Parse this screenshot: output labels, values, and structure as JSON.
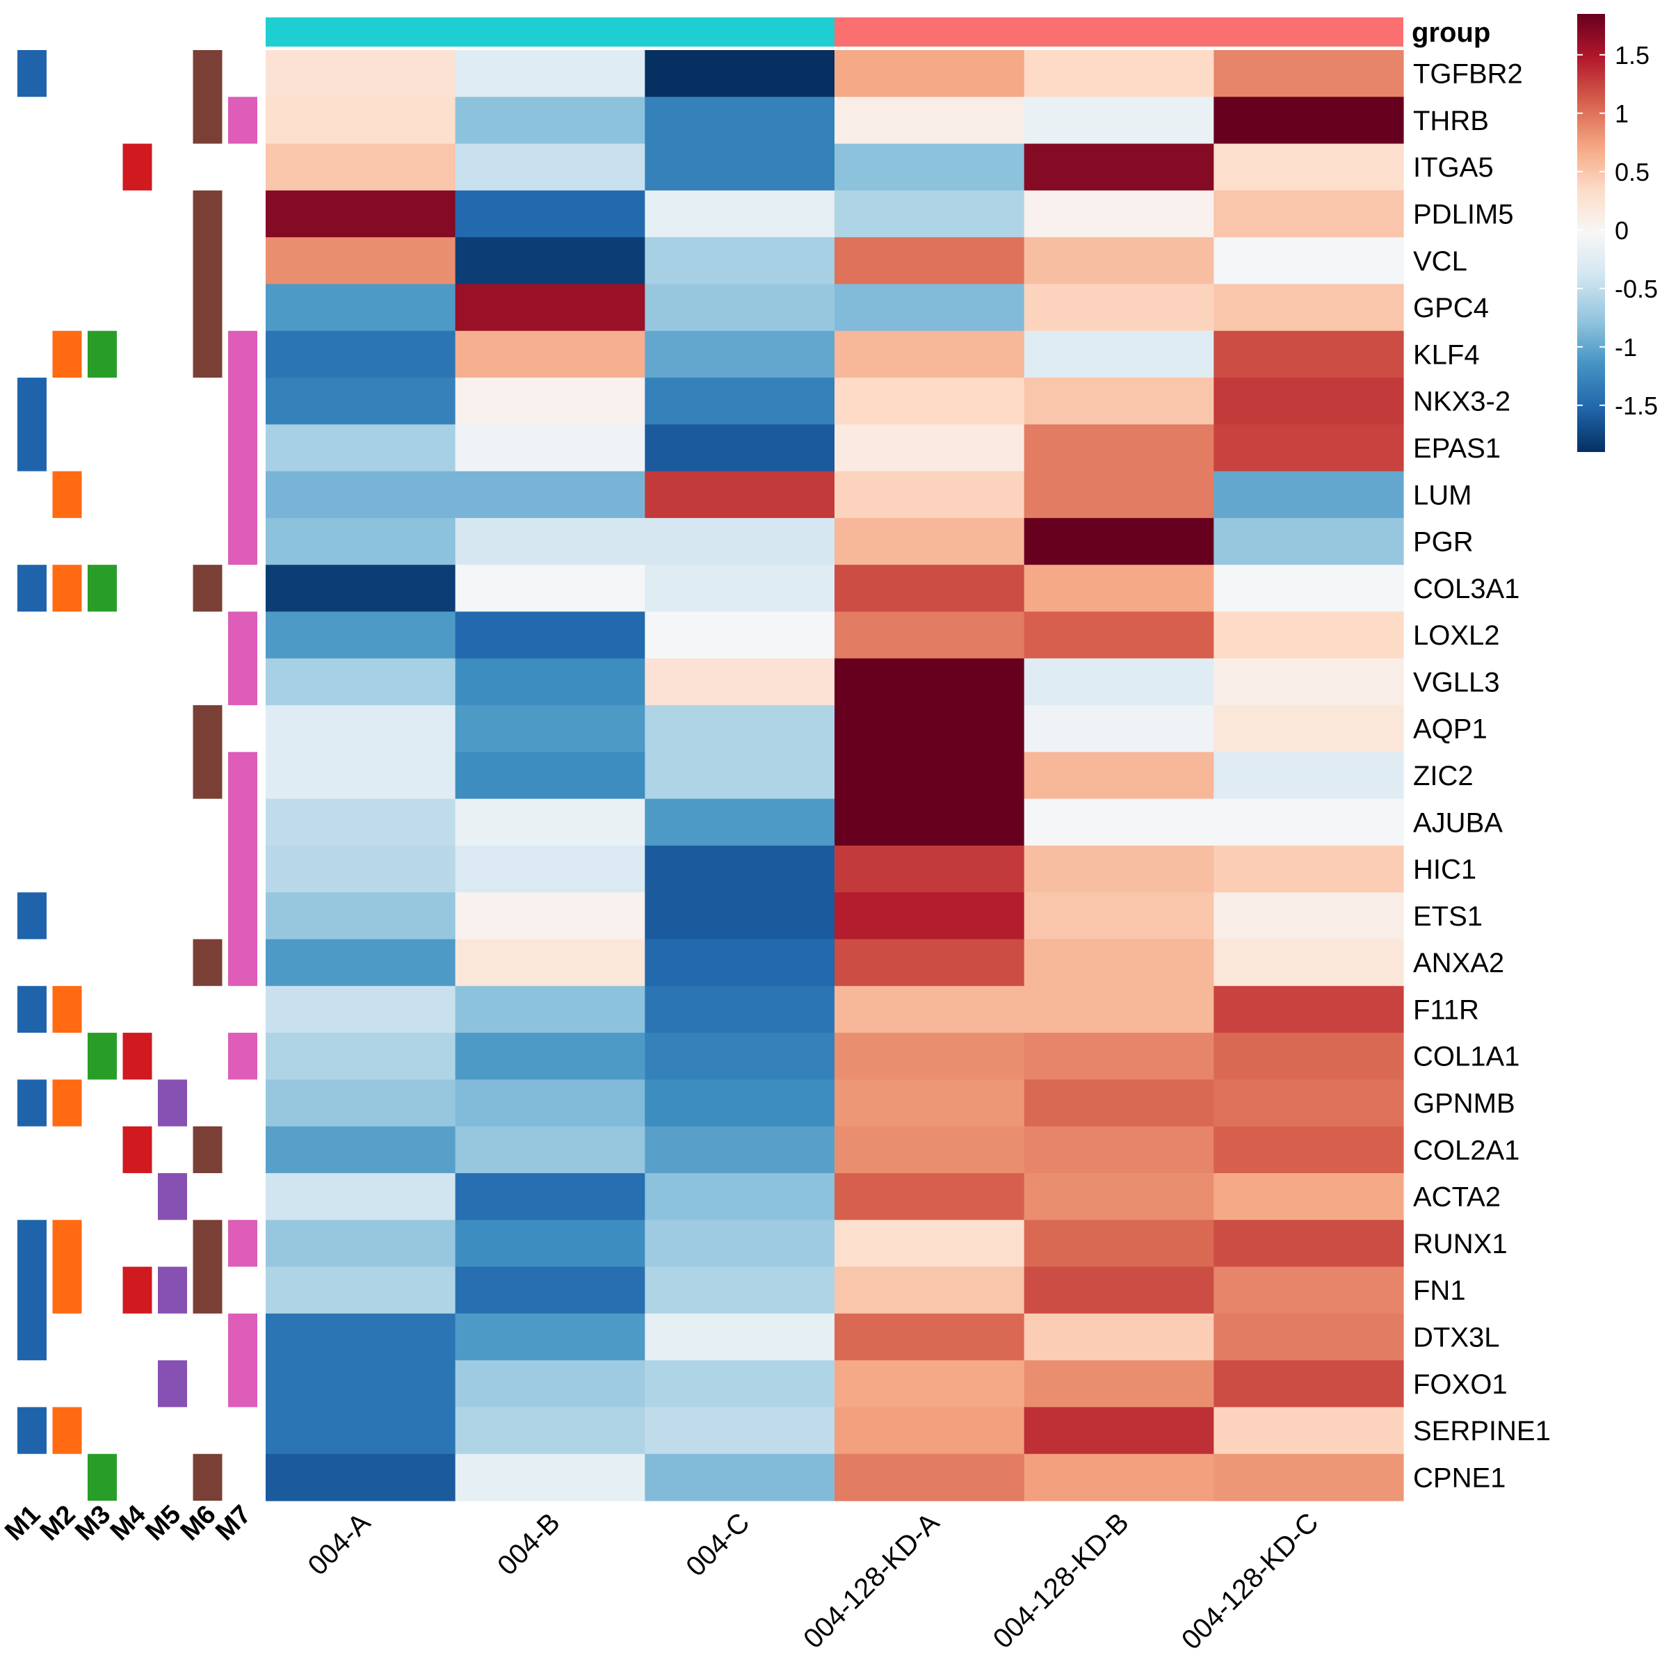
{
  "chart_data": {
    "type": "heatmap",
    "title": "",
    "rows": [
      "TGFBR2",
      "THRB",
      "ITGA5",
      "PDLIM5",
      "VCL",
      "GPC4",
      "KLF4",
      "NKX3-2",
      "EPAS1",
      "LUM",
      "PGR",
      "COL3A1",
      "LOXL2",
      "VGLL3",
      "AQP1",
      "ZIC2",
      "AJUBA",
      "HIC1",
      "ETS1",
      "ANXA2",
      "F11R",
      "COL1A1",
      "GPNMB",
      "COL2A1",
      "ACTA2",
      "RUNX1",
      "FN1",
      "DTX3L",
      "FOXO1",
      "SERPINE1",
      "CPNE1"
    ],
    "columns": [
      "004-A",
      "004-B",
      "004-C",
      "004-128-KD-A",
      "004-128-KD-B",
      "004-128-KD-C"
    ],
    "values": [
      [
        0.25,
        -0.25,
        -1.9,
        0.7,
        0.35,
        0.9
      ],
      [
        0.3,
        -0.8,
        -1.3,
        0.1,
        -0.15,
        1.85
      ],
      [
        0.5,
        -0.45,
        -1.3,
        -0.8,
        1.7,
        0.3
      ],
      [
        1.7,
        -1.5,
        -0.2,
        -0.6,
        0.05,
        0.5
      ],
      [
        0.85,
        -1.8,
        -0.65,
        1.0,
        0.55,
        -0.05
      ],
      [
        -1.1,
        1.6,
        -0.75,
        -0.85,
        0.4,
        0.5
      ],
      [
        -1.4,
        0.65,
        -1.0,
        0.6,
        -0.25,
        1.2
      ],
      [
        -1.3,
        0.05,
        -1.3,
        0.35,
        0.5,
        1.3
      ],
      [
        -0.65,
        -0.1,
        -1.6,
        0.15,
        0.95,
        1.25
      ],
      [
        -0.9,
        -0.9,
        1.3,
        0.4,
        0.95,
        -1.0
      ],
      [
        -0.8,
        -0.35,
        -0.35,
        0.6,
        1.95,
        -0.75
      ],
      [
        -1.8,
        -0.05,
        -0.25,
        1.2,
        0.7,
        -0.05
      ],
      [
        -1.1,
        -1.5,
        -0.05,
        0.95,
        1.1,
        0.35
      ],
      [
        -0.65,
        -1.2,
        0.25,
        1.95,
        -0.25,
        0.1
      ],
      [
        -0.25,
        -1.1,
        -0.6,
        2.05,
        -0.1,
        0.2
      ],
      [
        -0.25,
        -1.2,
        -0.6,
        1.85,
        0.6,
        -0.25
      ],
      [
        -0.5,
        -0.15,
        -1.1,
        2.05,
        -0.05,
        -0.05
      ],
      [
        -0.55,
        -0.3,
        -1.6,
        1.3,
        0.55,
        0.45
      ],
      [
        -0.75,
        0.05,
        -1.6,
        1.45,
        0.5,
        0.1
      ],
      [
        -1.1,
        0.2,
        -1.5,
        1.2,
        0.6,
        0.2
      ],
      [
        -0.45,
        -0.8,
        -1.4,
        0.6,
        0.6,
        1.25
      ],
      [
        -0.6,
        -1.1,
        -1.3,
        0.85,
        0.9,
        1.05
      ],
      [
        -0.75,
        -0.85,
        -1.2,
        0.8,
        1.05,
        1.0
      ],
      [
        -1.05,
        -0.75,
        -1.05,
        0.85,
        0.9,
        1.1
      ],
      [
        -0.4,
        -1.45,
        -0.8,
        1.1,
        0.85,
        0.7
      ],
      [
        -0.75,
        -1.2,
        -0.7,
        0.3,
        1.05,
        1.2
      ],
      [
        -0.6,
        -1.45,
        -0.6,
        0.5,
        1.2,
        0.9
      ],
      [
        -1.4,
        -1.1,
        -0.2,
        1.05,
        0.45,
        0.95
      ],
      [
        -1.4,
        -0.7,
        -0.6,
        0.7,
        0.85,
        1.2
      ],
      [
        -1.4,
        -0.6,
        -0.5,
        0.75,
        1.35,
        0.4
      ],
      [
        -1.6,
        -0.2,
        -0.85,
        0.95,
        0.75,
        0.8
      ]
    ],
    "color_scale": {
      "min": -1.9,
      "max": 1.85,
      "low": "#053061",
      "mid": "#f7f7f7",
      "high": "#67001f",
      "ticks": [
        "1.5",
        "1",
        "0.5",
        "0",
        "-0.5",
        "-1",
        "-1.5"
      ],
      "tick_values": [
        1.5,
        1,
        0.5,
        0,
        -0.5,
        -1,
        -1.5
      ]
    },
    "column_annotation": {
      "title": "group",
      "groups": [
        {
          "columns": [
            0,
            1,
            2
          ],
          "color": "#1fced1"
        },
        {
          "columns": [
            3,
            4,
            5
          ],
          "color": "#fa7070"
        }
      ]
    },
    "row_annotation": {
      "modules": [
        {
          "name": "M1",
          "color": "#1f64ab",
          "rows": [
            0,
            7,
            8,
            11,
            18,
            20,
            22,
            25,
            26,
            27,
            29
          ]
        },
        {
          "name": "M2",
          "color": "#ff6a12",
          "rows": [
            6,
            9,
            11,
            20,
            22,
            25,
            26,
            29
          ]
        },
        {
          "name": "M3",
          "color": "#289e28",
          "rows": [
            6,
            11,
            21,
            30
          ]
        },
        {
          "name": "M4",
          "color": "#d01a20",
          "rows": [
            2,
            21,
            23,
            26
          ]
        },
        {
          "name": "M5",
          "color": "#8651b2",
          "rows": [
            22,
            24,
            26,
            28
          ]
        },
        {
          "name": "M6",
          "color": "#7a3f35",
          "rows": [
            0,
            1,
            3,
            4,
            5,
            6,
            11,
            14,
            15,
            19,
            23,
            25,
            26,
            30
          ]
        },
        {
          "name": "M7",
          "color": "#dd5db8",
          "rows": [
            1,
            6,
            7,
            8,
            9,
            10,
            12,
            13,
            15,
            16,
            17,
            18,
            19,
            21,
            25,
            27,
            28
          ]
        }
      ]
    },
    "legend_placement": "top-right",
    "grid": false
  }
}
